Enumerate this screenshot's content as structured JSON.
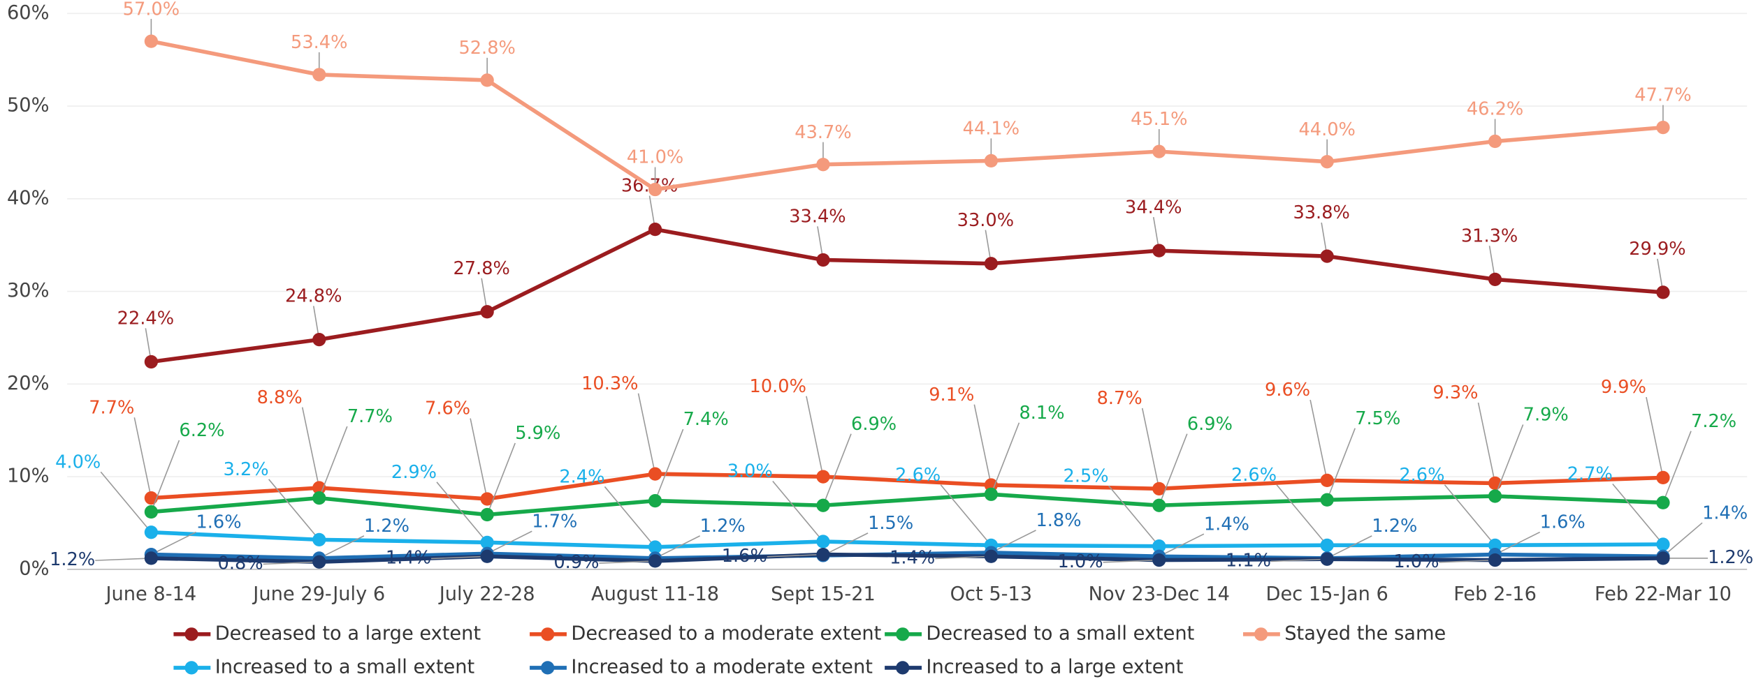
{
  "chart_data": {
    "type": "line",
    "categories": [
      "June 8-14",
      "June 29-July 6",
      "July 22-28",
      "August 11-18",
      "Sept 15-21",
      "Oct 5-13",
      "Nov 23-Dec 14",
      "Dec 15-Jan 6",
      "Feb 2-16",
      "Feb 22-Mar 10"
    ],
    "ylim": [
      0,
      60
    ],
    "yticks": [
      {
        "value": 0,
        "label": "0%"
      },
      {
        "value": 10,
        "label": "10%"
      },
      {
        "value": 20,
        "label": "20%"
      },
      {
        "value": 30,
        "label": "30%"
      },
      {
        "value": 40,
        "label": "40%"
      },
      {
        "value": 50,
        "label": "50%"
      },
      {
        "value": 60,
        "label": "60%"
      }
    ],
    "grid": true,
    "legend": "bottom",
    "series": [
      {
        "name": "Decreased to a large extent",
        "color": "#9b1c1f",
        "values": [
          22.4,
          24.8,
          27.8,
          36.7,
          33.4,
          33.0,
          34.4,
          33.8,
          31.3,
          29.9
        ],
        "value_labels": [
          "22.4%",
          "24.8%",
          "27.8%",
          "36.7%",
          "33.4%",
          "33.0%",
          "34.4%",
          "33.8%",
          "31.3%",
          "29.9%"
        ]
      },
      {
        "name": "Decreased to a moderate extent",
        "color": "#ea4e23",
        "values": [
          7.7,
          8.8,
          7.6,
          10.3,
          10.0,
          9.1,
          8.7,
          9.6,
          9.3,
          9.9
        ],
        "value_labels": [
          "7.7%",
          "8.8%",
          "7.6%",
          "10.3%",
          "10.0%",
          "9.1%",
          "8.7%",
          "9.6%",
          "9.3%",
          "9.9%"
        ]
      },
      {
        "name": "Decreased to a small extent",
        "color": "#16a94a",
        "values": [
          6.2,
          7.7,
          5.9,
          7.4,
          6.9,
          8.1,
          6.9,
          7.5,
          7.9,
          7.2
        ],
        "value_labels": [
          "6.2%",
          "7.7%",
          "5.9%",
          "7.4%",
          "6.9%",
          "8.1%",
          "6.9%",
          "7.5%",
          "7.9%",
          "7.2%"
        ]
      },
      {
        "name": "Stayed the same",
        "color": "#f49a7c",
        "values": [
          57.0,
          53.4,
          52.8,
          41.0,
          43.7,
          44.1,
          45.1,
          44.0,
          46.2,
          47.7
        ],
        "value_labels": [
          "57.0%",
          "53.4%",
          "52.8%",
          "41.0%",
          "43.7%",
          "44.1%",
          "45.1%",
          "44.0%",
          "46.2%",
          "47.7%"
        ]
      },
      {
        "name": "Increased to a small extent",
        "color": "#1ab0ea",
        "values": [
          4.0,
          3.2,
          2.9,
          2.4,
          3.0,
          2.6,
          2.5,
          2.6,
          2.6,
          2.7
        ],
        "value_labels": [
          "4.0%",
          "3.2%",
          "2.9%",
          "2.4%",
          "3.0%",
          "2.6%",
          "2.5%",
          "2.6%",
          "2.6%",
          "2.7%"
        ]
      },
      {
        "name": "Increased to a moderate extent",
        "color": "#1f6fb5",
        "values": [
          1.6,
          1.2,
          1.7,
          1.2,
          1.5,
          1.8,
          1.4,
          1.2,
          1.6,
          1.4
        ],
        "value_labels": [
          "1.6%",
          "1.2%",
          "1.7%",
          "1.2%",
          "1.5%",
          "1.8%",
          "1.4%",
          "1.2%",
          "1.6%",
          "1.4%"
        ]
      },
      {
        "name": "Increased to a large extent",
        "color": "#1d3a6e",
        "values": [
          1.2,
          0.8,
          1.4,
          0.9,
          1.6,
          1.4,
          1.0,
          1.1,
          1.0,
          1.2
        ],
        "value_labels": [
          "1.2%",
          "0.8%",
          "1.4%",
          "0.9%",
          "1.6%",
          "1.4%",
          "1.0%",
          "1.1%",
          "1.0%",
          "1.2%"
        ]
      }
    ]
  }
}
